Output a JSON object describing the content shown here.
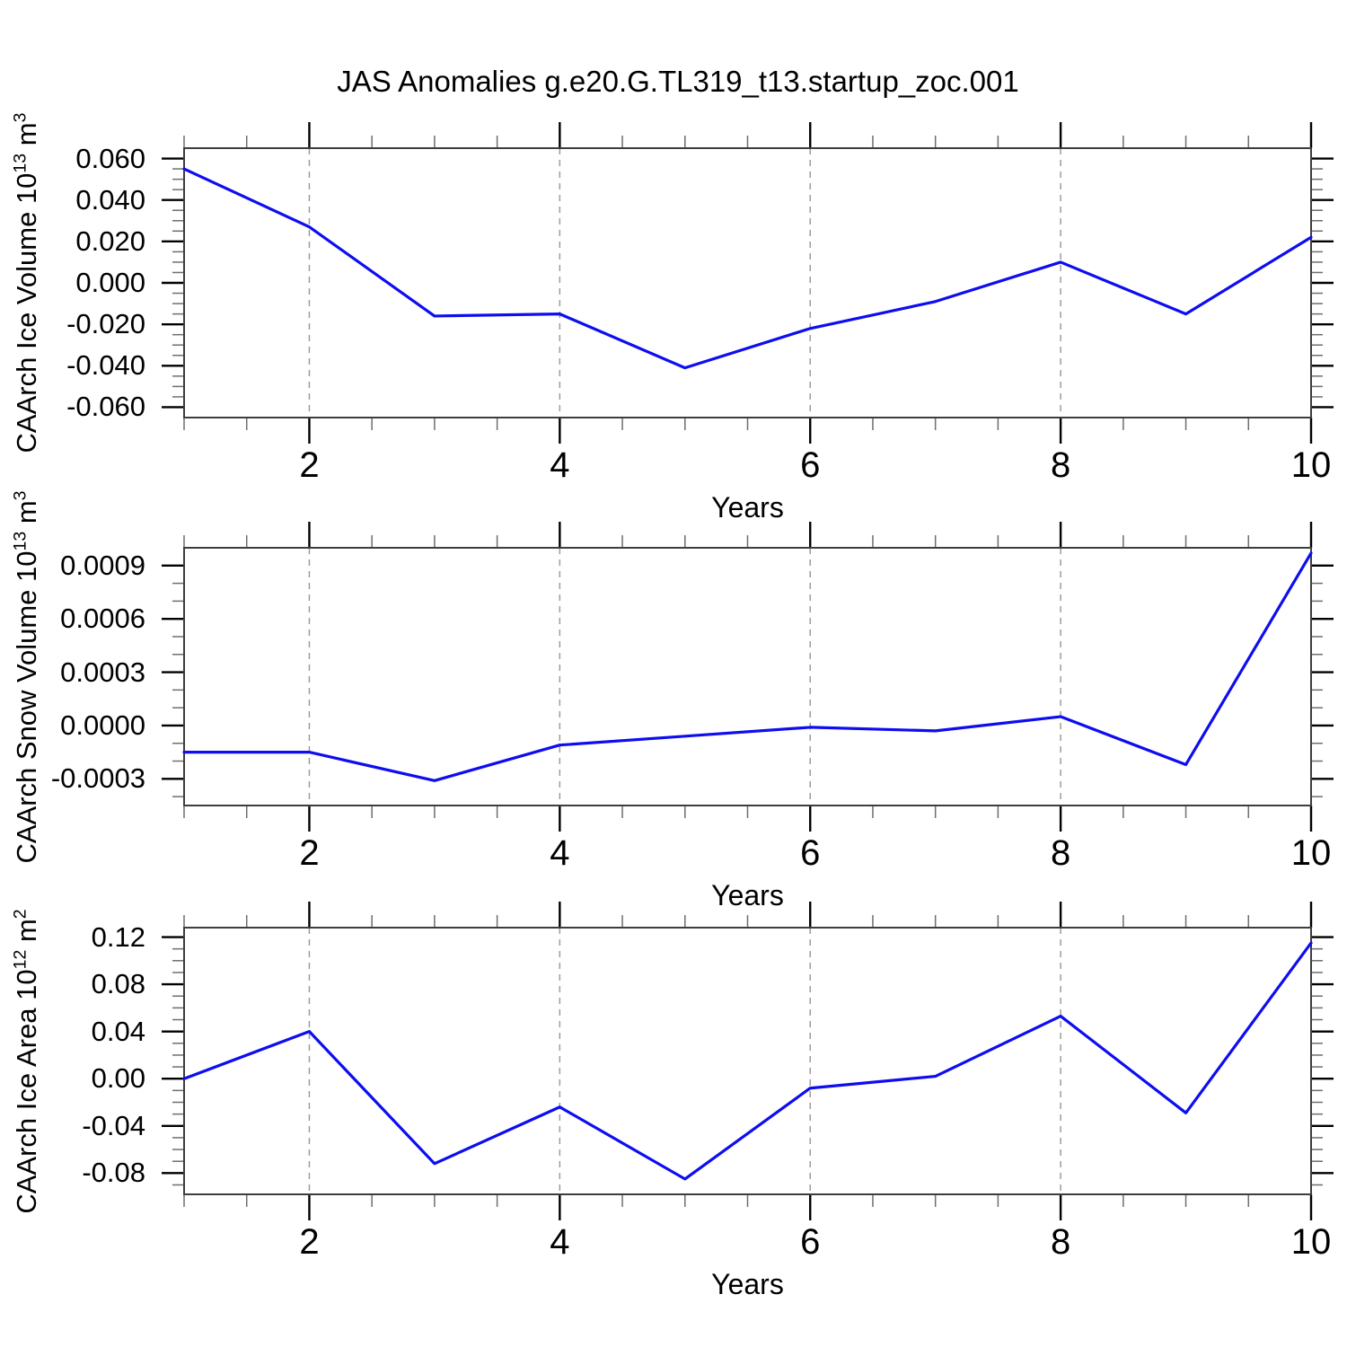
{
  "title": "JAS Anomalies g.e20.G.TL319_t13.startup_zoc.001",
  "figure": {
    "background_color": "#ffffff",
    "line_color": "#0d0df0",
    "grid_color": "#9c9c9c",
    "frame_color": "#3d3d3d",
    "major_tick_color": "#000000",
    "minor_tick_color": "#6e6e6e",
    "text_color": "#000000"
  },
  "x_axis": {
    "label": "Years",
    "range": [
      1,
      10
    ],
    "major_ticks": [
      2,
      4,
      6,
      8,
      10
    ],
    "major_tick_labels": [
      "2",
      "4",
      "6",
      "8",
      "10"
    ],
    "minor_step": 0.5,
    "grid_lines": [
      2,
      4,
      6,
      8
    ]
  },
  "chart_data": [
    {
      "type": "line",
      "series_name": "CAArch Ice Volume anomaly",
      "xlabel": "Years",
      "ylabel_text": "CAArch Ice Volume 10^13 m^3",
      "ylabel_parts": [
        {
          "t": "CAArch Ice Volume 10"
        },
        {
          "sup": "13"
        },
        {
          "t": " m"
        },
        {
          "sup": "3"
        }
      ],
      "x": [
        1,
        2,
        3,
        4,
        5,
        6,
        7,
        8,
        9,
        10
      ],
      "values": [
        0.055,
        0.027,
        -0.016,
        -0.015,
        -0.041,
        -0.022,
        -0.009,
        0.01,
        -0.015,
        0.022
      ],
      "ylim": [
        -0.065,
        0.065
      ],
      "yminor_step": 0.005,
      "yticks": [
        {
          "v": 0.06,
          "label": "0.060"
        },
        {
          "v": 0.04,
          "label": "0.040"
        },
        {
          "v": 0.02,
          "label": "0.020"
        },
        {
          "v": 0.0,
          "label": "0.000"
        },
        {
          "v": -0.02,
          "label": "-0.020"
        },
        {
          "v": -0.04,
          "label": "-0.040"
        },
        {
          "v": -0.06,
          "label": "-0.060"
        }
      ],
      "grid": true,
      "legend": "none"
    },
    {
      "type": "line",
      "series_name": "CAArch Snow Volume anomaly",
      "xlabel": "Years",
      "ylabel_text": "CAArch Snow Volume 10^13 m^3",
      "ylabel_parts": [
        {
          "t": "CAArch Snow Volume 10"
        },
        {
          "sup": "13"
        },
        {
          "t": " m"
        },
        {
          "sup": "3"
        }
      ],
      "x": [
        1,
        2,
        3,
        4,
        5,
        6,
        7,
        8,
        9,
        10
      ],
      "values": [
        -0.00015,
        -0.00015,
        -0.00031,
        -0.00011,
        -6e-05,
        -1e-05,
        -3e-05,
        5e-05,
        -0.00022,
        0.00097
      ],
      "ylim": [
        -0.00045,
        0.001
      ],
      "yminor_step": 0.0001,
      "yticks": [
        {
          "v": 0.0009,
          "label": "0.0009"
        },
        {
          "v": 0.0006,
          "label": "0.0006"
        },
        {
          "v": 0.0003,
          "label": "0.0003"
        },
        {
          "v": 0.0,
          "label": "0.0000"
        },
        {
          "v": -0.0003,
          "label": "-0.0003"
        }
      ],
      "grid": true,
      "legend": "none"
    },
    {
      "type": "line",
      "series_name": "CAArch Ice Area anomaly",
      "xlabel": "Years",
      "ylabel_text": "CAArch Ice Area 10^12 m^2",
      "ylabel_parts": [
        {
          "t": "CAArch Ice Area 10"
        },
        {
          "sup": "12"
        },
        {
          "t": " m"
        },
        {
          "sup": "2"
        }
      ],
      "x": [
        1,
        2,
        3,
        4,
        5,
        6,
        7,
        8,
        9,
        10
      ],
      "values": [
        0.0,
        0.04,
        -0.072,
        -0.024,
        -0.085,
        -0.008,
        0.002,
        0.053,
        -0.029,
        0.115
      ],
      "ylim": [
        -0.098,
        0.128
      ],
      "yminor_step": 0.01,
      "yticks": [
        {
          "v": 0.12,
          "label": "0.12"
        },
        {
          "v": 0.08,
          "label": "0.08"
        },
        {
          "v": 0.04,
          "label": "0.04"
        },
        {
          "v": 0.0,
          "label": "0.00"
        },
        {
          "v": -0.04,
          "label": "-0.04"
        },
        {
          "v": -0.08,
          "label": "-0.08"
        }
      ],
      "grid": true,
      "legend": "none"
    }
  ]
}
